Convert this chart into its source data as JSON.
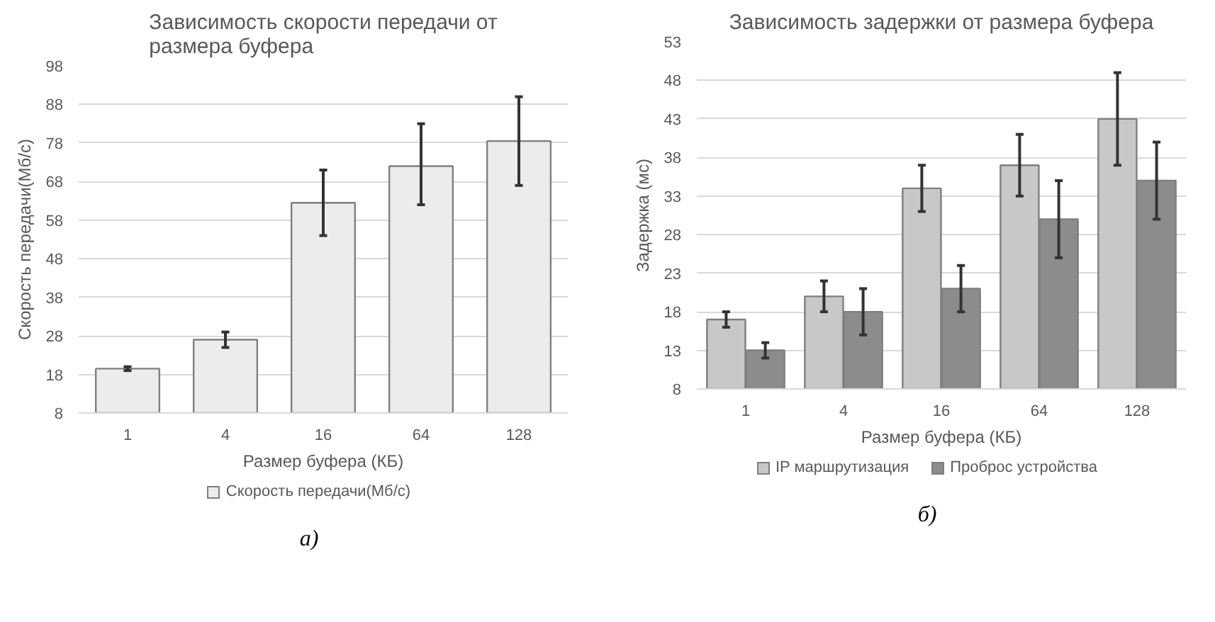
{
  "chart_data": [
    {
      "type": "bar",
      "title": "Зависимость скорости передачи от размера буфера",
      "xlabel": "Размер буфера (КБ)",
      "ylabel": "Скорость передачи(Мб/с)",
      "categories": [
        "1",
        "4",
        "16",
        "64",
        "128"
      ],
      "series": [
        {
          "name": "Скорость передачи(Мб/с)",
          "color": "#ececec",
          "values": [
            19.5,
            27,
            62.5,
            72,
            78.5
          ],
          "errors": [
            [
              19,
              20
            ],
            [
              25,
              29
            ],
            [
              54,
              71
            ],
            [
              62,
              83
            ],
            [
              67,
              90
            ]
          ]
        }
      ],
      "ylim": [
        8,
        98
      ],
      "yticks": [
        8,
        18,
        28,
        38,
        48,
        58,
        68,
        78,
        88,
        98
      ],
      "grid": "y",
      "legend": "bottom",
      "annotations": [
        "а)"
      ]
    },
    {
      "type": "bar",
      "title": "Зависимость задержки от размера буфера",
      "xlabel": "Размер буфера (КБ)",
      "ylabel": "Задержка (мс)",
      "categories": [
        "1",
        "4",
        "16",
        "64",
        "128"
      ],
      "series": [
        {
          "name": "IP маршрутизация",
          "color": "#c8c8c8",
          "values": [
            17,
            20,
            34,
            37,
            43
          ],
          "errors": [
            [
              16,
              18
            ],
            [
              18,
              22
            ],
            [
              31,
              37
            ],
            [
              33,
              41
            ],
            [
              37,
              49
            ]
          ]
        },
        {
          "name": "Проброс устройства",
          "color": "#8c8c8c",
          "values": [
            13,
            18,
            21,
            30,
            35
          ],
          "errors": [
            [
              12,
              14
            ],
            [
              15,
              21
            ],
            [
              18,
              24
            ],
            [
              25,
              35
            ],
            [
              30,
              40
            ]
          ]
        }
      ],
      "ylim": [
        8,
        53
      ],
      "yticks": [
        8,
        13,
        18,
        23,
        28,
        33,
        38,
        43,
        48,
        53
      ],
      "grid": "y",
      "legend": "bottom",
      "annotations": [
        "б)"
      ]
    }
  ]
}
